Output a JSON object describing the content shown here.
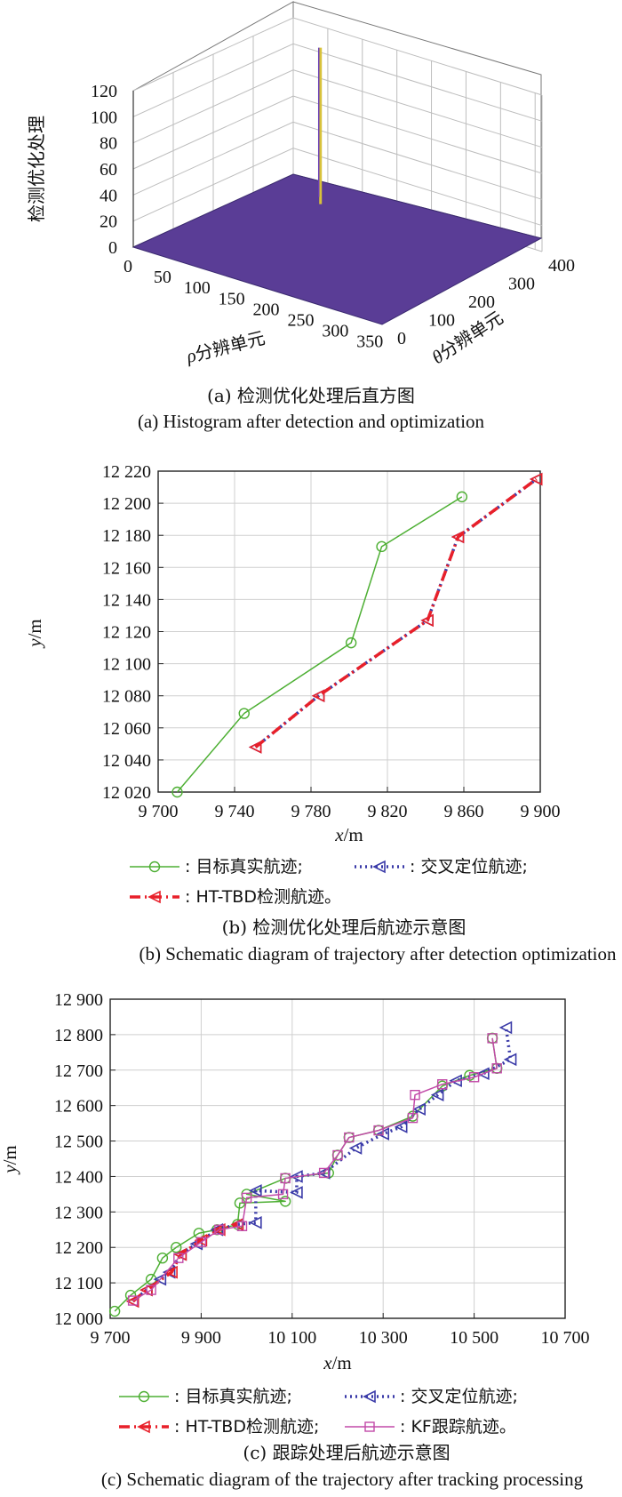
{
  "colors": {
    "true_track": "#4daf33",
    "cross_track": "#3a3aa8",
    "tbd_track": "#e8202a",
    "kf_track": "#c24aa8",
    "surface": "#5a3d96",
    "spike": "#d8c23a"
  },
  "chart_data": [
    {
      "type": "histogram3d",
      "zlabel": "检测优化处理",
      "xlabel_symbol": "ρ",
      "xlabel": "分辨单元",
      "ylabel_symbol": "θ",
      "ylabel": "分辨单元",
      "xticks": [
        0,
        50,
        100,
        150,
        200,
        250,
        300,
        350
      ],
      "yticks": [
        0,
        100,
        200,
        300,
        400
      ],
      "zticks": [
        0,
        20,
        40,
        60,
        80,
        100,
        120
      ],
      "xlim": [
        0,
        360
      ],
      "ylim": [
        0,
        400
      ],
      "zlim": [
        0,
        120
      ],
      "peak": {
        "rho": 80,
        "theta": 330,
        "value": 120
      },
      "caption_zh": "(a) 检测优化处理后直方图",
      "caption_en": "(a) Histogram after detection and optimization"
    },
    {
      "type": "line",
      "xlabel": "x",
      "xunit": "/m",
      "ylabel": "y",
      "yunit": "/m",
      "xlim": [
        9700,
        9900
      ],
      "ylim": [
        12020,
        12220
      ],
      "xticks": [
        9700,
        9740,
        9780,
        9820,
        9860,
        9900
      ],
      "xtick_labels": [
        "9 700",
        "9 740",
        "9 780",
        "9 820",
        "9 860",
        "9 900"
      ],
      "yticks": [
        12020,
        12040,
        12060,
        12080,
        12100,
        12120,
        12140,
        12160,
        12180,
        12200,
        12220
      ],
      "ytick_labels": [
        "12 020",
        "12 040",
        "12 060",
        "12 080",
        "12 100",
        "12 120",
        "12 140",
        "12 160",
        "12 180",
        "12 200",
        "12 220"
      ],
      "grid": true,
      "series": [
        {
          "key": "true",
          "x": [
            9710,
            9745,
            9801,
            9817,
            9859
          ],
          "y": [
            12020,
            12069,
            12113,
            12173,
            12204
          ]
        },
        {
          "key": "cross",
          "x": [
            9751,
            9784,
            9841,
            9857,
            9898
          ],
          "y": [
            12048,
            12080,
            12127,
            12179,
            12215
          ]
        },
        {
          "key": "tbd",
          "x": [
            9751,
            9784,
            9841,
            9857,
            9898
          ],
          "y": [
            12048,
            12080,
            12127,
            12179,
            12215
          ]
        }
      ],
      "legend": [
        {
          "key": "true",
          "label": ": 目标真实航迹;"
        },
        {
          "key": "cross",
          "label": ": 交叉定位航迹;"
        },
        {
          "key": "tbd",
          "label": ": HT-TBD检测航迹。"
        }
      ],
      "caption_zh": "(b) 检测优化处理后航迹示意图",
      "caption_en": "(b) Schematic diagram of trajectory after detection optimization"
    },
    {
      "type": "line",
      "xlabel": "x",
      "xunit": "/m",
      "ylabel": "y",
      "yunit": "/m",
      "xlim": [
        9700,
        10700
      ],
      "ylim": [
        12000,
        12900
      ],
      "xticks": [
        9700,
        9900,
        10100,
        10300,
        10500,
        10700
      ],
      "xtick_labels": [
        "9 700",
        "9 900",
        "10 100",
        "10 300",
        "10 500",
        "10 700"
      ],
      "yticks": [
        12000,
        12100,
        12200,
        12300,
        12400,
        12500,
        12600,
        12700,
        12800,
        12900
      ],
      "ytick_labels": [
        "12 000",
        "12 100",
        "12 200",
        "12 300",
        "12 400",
        "12 500",
        "12 600",
        "12 700",
        "12 800",
        "12 900"
      ],
      "grid": true,
      "series": [
        {
          "key": "true",
          "x": [
            9710,
            9745,
            9790,
            9815,
            9845,
            9895,
            9935,
            9980,
            9985,
            10085,
            10000,
            10085,
            10180,
            10200,
            10225,
            10290,
            10365,
            10430,
            10490,
            10550,
            10540
          ],
          "y": [
            12020,
            12065,
            12110,
            12170,
            12200,
            12240,
            12250,
            12265,
            12325,
            12330,
            12350,
            12395,
            12410,
            12460,
            12510,
            12530,
            12570,
            12655,
            12685,
            12705,
            12790
          ]
        },
        {
          "key": "cross",
          "x": [
            9750,
            9780,
            9810,
            9830,
            9855,
            9890,
            9935,
            9980,
            10020,
            10020,
            10110,
            10110,
            10170,
            10240,
            10300,
            10340,
            10380,
            10420,
            10460,
            10520,
            10580,
            10570
          ],
          "y": [
            12048,
            12080,
            12110,
            12130,
            12180,
            12210,
            12250,
            12265,
            12270,
            12360,
            12355,
            12400,
            12410,
            12480,
            12520,
            12540,
            12590,
            12630,
            12670,
            12690,
            12730,
            12820
          ]
        },
        {
          "key": "tbd",
          "x": [
            9750,
            9780,
            9835,
            9855,
            9900,
            9940,
            9980
          ],
          "y": [
            12048,
            12080,
            12130,
            12180,
            12220,
            12250,
            12265
          ]
        },
        {
          "key": "kf",
          "x": [
            9750,
            9790,
            9850,
            9900,
            9940,
            9990,
            10000,
            10080,
            10085,
            10170,
            10200,
            10225,
            10290,
            10365,
            10370,
            10430,
            10500,
            10550,
            10540
          ],
          "y": [
            12050,
            12080,
            12170,
            12215,
            12250,
            12260,
            12340,
            12350,
            12395,
            12410,
            12460,
            12510,
            12530,
            12565,
            12630,
            12660,
            12680,
            12705,
            12790
          ]
        }
      ],
      "legend": [
        {
          "key": "true",
          "label": ": 目标真实航迹;"
        },
        {
          "key": "cross",
          "label": ": 交叉定位航迹;"
        },
        {
          "key": "tbd",
          "label": ": HT-TBD检测航迹;"
        },
        {
          "key": "kf",
          "label": ": KF跟踪航迹。"
        }
      ],
      "caption_zh": "(c) 跟踪处理后航迹示意图",
      "caption_en": "(c) Schematic diagram of the trajectory after tracking processing"
    }
  ]
}
